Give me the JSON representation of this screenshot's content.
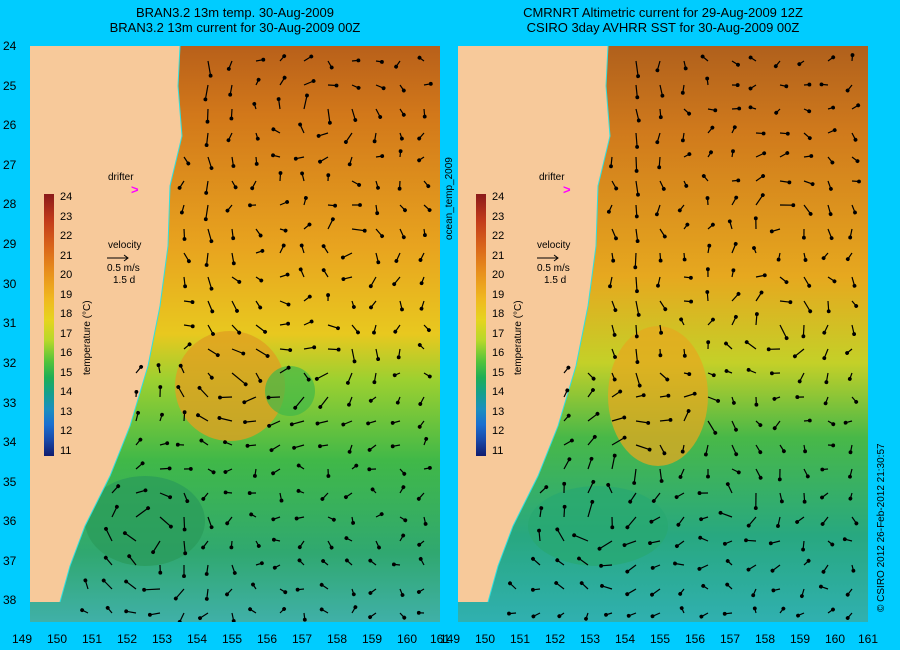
{
  "titles": {
    "left": [
      "BRAN3.2 13m temp. 30-Aug-2009",
      "BRAN3.2 13m current for 30-Aug-2009 00Z"
    ],
    "right": [
      "CMRNRT Altimetric current for 29-Aug-2009 12Z",
      "CSIRO 3day AVHRR SST for 30-Aug-2009 00Z"
    ]
  },
  "lat_labels": [
    "24",
    "25",
    "26",
    "27",
    "28",
    "29",
    "30",
    "31",
    "32",
    "33",
    "34",
    "35",
    "36",
    "37",
    "38"
  ],
  "lon_labels": [
    "149",
    "150",
    "151",
    "152",
    "153",
    "154",
    "155",
    "156",
    "157",
    "158",
    "159",
    "160",
    "161"
  ],
  "legend": {
    "drifter_label": "drifter",
    "velocity_label": "velocity",
    "scale_speed": "0.5 m/s",
    "scale_time": "1.5 d",
    "colorbar_ticks": [
      "24",
      "23",
      "22",
      "21",
      "20",
      "19",
      "18",
      "17",
      "16",
      "15",
      "14",
      "13",
      "12",
      "11"
    ],
    "colorbar_title": "temperature (°C)"
  },
  "side_labels": {
    "middle": "ocean_temp_2009",
    "right": "© CSIRO 2012   26-Feb-2012 21:30:57"
  },
  "colors": {
    "background": "#00ccff",
    "land": "#f7c99a",
    "coastline": "#30e0e0",
    "drifter": "#ff00ff",
    "warm_water": "#c0701c",
    "cool_water": "#2aa060"
  }
}
